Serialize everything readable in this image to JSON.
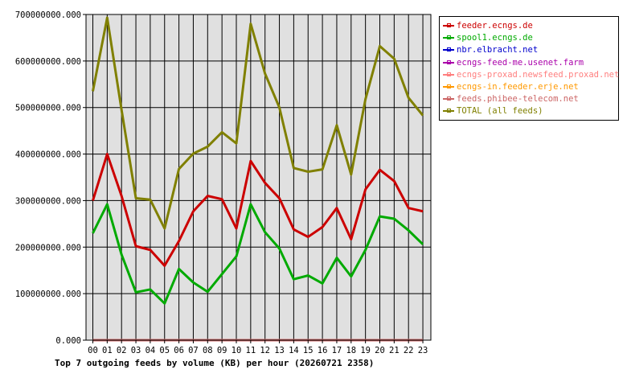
{
  "chart_data": {
    "type": "line",
    "title": "Top 7 outgoing feeds by volume (KB) per hour (20260721 2358)",
    "xlabel": "",
    "ylabel": "",
    "ylim": [
      0,
      700000000
    ],
    "yticks": [
      "0.000",
      "100000000.000",
      "200000000.000",
      "300000000.000",
      "400000000.000",
      "500000000.000",
      "600000000.000",
      "700000000.000"
    ],
    "categories": [
      "00",
      "01",
      "02",
      "03",
      "04",
      "05",
      "06",
      "07",
      "08",
      "09",
      "10",
      "11",
      "12",
      "13",
      "14",
      "15",
      "16",
      "17",
      "18",
      "19",
      "20",
      "21",
      "22",
      "23"
    ],
    "grid": true,
    "legend_position": "right",
    "series": [
      {
        "name": "feeder.ecngs.de",
        "color": "#cc0000",
        "values": [
          300000000,
          400000000,
          310000000,
          202000000,
          194000000,
          160000000,
          213000000,
          277000000,
          310000000,
          303000000,
          240000000,
          385000000,
          338000000,
          305000000,
          238000000,
          222000000,
          243000000,
          284000000,
          217000000,
          324000000,
          366000000,
          342000000,
          284000000,
          277000000
        ]
      },
      {
        "name": "spool1.ecngs.de",
        "color": "#00aa00",
        "values": [
          230000000,
          292000000,
          184000000,
          103000000,
          109000000,
          79000000,
          153000000,
          124000000,
          104000000,
          142000000,
          180000000,
          292000000,
          232000000,
          197000000,
          131000000,
          139000000,
          122000000,
          177000000,
          137000000,
          194000000,
          266000000,
          261000000,
          236000000,
          206000000
        ]
      },
      {
        "name": "nbr.elbracht.net",
        "color": "#0000cc",
        "values": [
          0,
          0,
          0,
          0,
          0,
          0,
          0,
          0,
          0,
          0,
          0,
          0,
          0,
          0,
          0,
          0,
          0,
          0,
          0,
          0,
          0,
          0,
          0,
          0
        ]
      },
      {
        "name": "ecngs-feed-me.usenet.farm",
        "color": "#aa00aa",
        "values": [
          0,
          0,
          0,
          0,
          0,
          0,
          0,
          0,
          0,
          0,
          0,
          0,
          0,
          0,
          0,
          0,
          0,
          0,
          0,
          0,
          0,
          0,
          0,
          0
        ]
      },
      {
        "name": "ecngs-proxad.newsfeed.proxad.net",
        "color": "#ff7f7f",
        "values": [
          0,
          0,
          0,
          0,
          0,
          0,
          0,
          0,
          0,
          0,
          0,
          0,
          0,
          0,
          0,
          0,
          0,
          0,
          0,
          0,
          0,
          0,
          0,
          0
        ]
      },
      {
        "name": "ecngs-in.feeder.erje.net",
        "color": "#ff9900",
        "values": [
          0,
          0,
          0,
          0,
          0,
          0,
          0,
          0,
          0,
          0,
          0,
          0,
          0,
          0,
          0,
          0,
          0,
          0,
          0,
          0,
          0,
          0,
          0,
          0
        ]
      },
      {
        "name": "feeds.phibee-telecom.net",
        "color": "#cc6666",
        "values": [
          0,
          0,
          0,
          0,
          0,
          0,
          0,
          0,
          0,
          0,
          0,
          0,
          0,
          0,
          0,
          0,
          0,
          0,
          0,
          0,
          0,
          0,
          0,
          0
        ]
      },
      {
        "name": "TOTAL (all feeds)",
        "color": "#808000",
        "values": [
          535000000,
          693000000,
          495000000,
          305000000,
          302000000,
          240000000,
          368000000,
          401000000,
          416000000,
          447000000,
          423000000,
          680000000,
          573000000,
          500000000,
          370000000,
          362000000,
          367000000,
          462000000,
          356000000,
          518000000,
          632000000,
          605000000,
          521000000,
          483000000
        ]
      }
    ]
  }
}
